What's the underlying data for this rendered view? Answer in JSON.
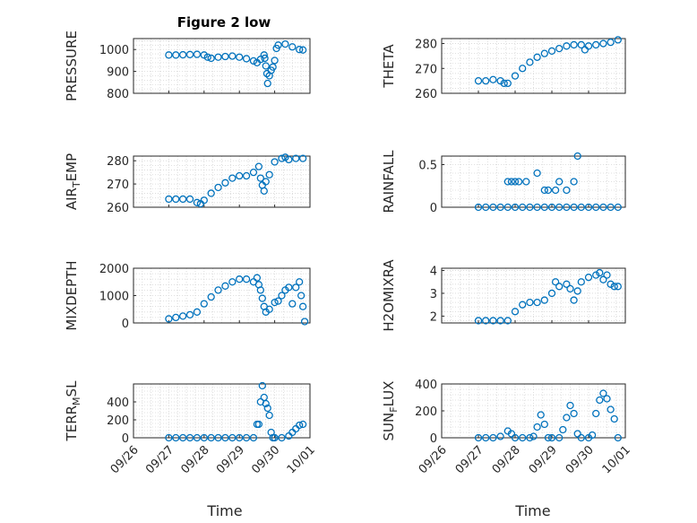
{
  "title": "Figure 2 low",
  "colors": {
    "marker": "#0072BD",
    "axis": "#262626",
    "grid": "#d6d6d6",
    "background": "#ffffff"
  },
  "x_ticks": [
    "09/26",
    "09/27",
    "09/28",
    "09/29",
    "09/30",
    "10/01"
  ],
  "x_label": "Time",
  "chart_data": [
    {
      "type": "scatter",
      "ylabel_main": "PRESSURE",
      "ylabel_sub": "",
      "ylabel_tail": "",
      "ylim": [
        800,
        1050
      ],
      "yticks": [
        800,
        900,
        1000
      ],
      "xlim": [
        0,
        5
      ],
      "grid": true,
      "series": [
        {
          "values": [
            [
              1.0,
              975
            ],
            [
              1.2,
              975
            ],
            [
              1.4,
              976
            ],
            [
              1.6,
              977
            ],
            [
              1.8,
              978
            ],
            [
              2.0,
              975
            ],
            [
              2.1,
              965
            ],
            [
              2.2,
              960
            ],
            [
              2.4,
              965
            ],
            [
              2.6,
              968
            ],
            [
              2.8,
              970
            ],
            [
              3.0,
              965
            ],
            [
              3.2,
              958
            ],
            [
              3.4,
              948
            ],
            [
              3.5,
              940
            ],
            [
              3.6,
              955
            ],
            [
              3.7,
              975
            ],
            [
              3.72,
              960
            ],
            [
              3.75,
              925
            ],
            [
              3.78,
              890
            ],
            [
              3.8,
              845
            ],
            [
              3.85,
              880
            ],
            [
              3.9,
              905
            ],
            [
              3.95,
              920
            ],
            [
              4.0,
              950
            ],
            [
              4.05,
              1005
            ],
            [
              4.1,
              1020
            ],
            [
              4.3,
              1025
            ],
            [
              4.5,
              1012
            ],
            [
              4.7,
              1000
            ],
            [
              4.8,
              998
            ]
          ]
        }
      ]
    },
    {
      "type": "scatter",
      "ylabel_main": "THETA",
      "ylabel_sub": "",
      "ylabel_tail": "",
      "ylim": [
        260,
        282
      ],
      "yticks": [
        260,
        270,
        280
      ],
      "xlim": [
        0,
        5
      ],
      "grid": true,
      "series": [
        {
          "values": [
            [
              1.0,
              265
            ],
            [
              1.2,
              265
            ],
            [
              1.4,
              265.5
            ],
            [
              1.6,
              265
            ],
            [
              1.7,
              264
            ],
            [
              1.8,
              264
            ],
            [
              2.0,
              267
            ],
            [
              2.2,
              270
            ],
            [
              2.4,
              272.5
            ],
            [
              2.6,
              274.5
            ],
            [
              2.8,
              276
            ],
            [
              3.0,
              277
            ],
            [
              3.2,
              278
            ],
            [
              3.4,
              279
            ],
            [
              3.6,
              279.5
            ],
            [
              3.8,
              279.5
            ],
            [
              3.9,
              277.5
            ],
            [
              4.0,
              279
            ],
            [
              4.2,
              279.5
            ],
            [
              4.4,
              280
            ],
            [
              4.6,
              280.5
            ],
            [
              4.8,
              281.5
            ]
          ]
        }
      ]
    },
    {
      "type": "scatter",
      "ylabel_main": "AIR",
      "ylabel_sub": "T",
      "ylabel_tail": "EMP",
      "ylim": [
        260,
        282
      ],
      "yticks": [
        260,
        270,
        280
      ],
      "xlim": [
        0,
        5
      ],
      "grid": true,
      "series": [
        {
          "values": [
            [
              1.0,
              263.5
            ],
            [
              1.2,
              263.5
            ],
            [
              1.4,
              263.5
            ],
            [
              1.6,
              263.5
            ],
            [
              1.8,
              262
            ],
            [
              1.9,
              261.5
            ],
            [
              2.0,
              263
            ],
            [
              2.2,
              266
            ],
            [
              2.4,
              268.5
            ],
            [
              2.6,
              270.5
            ],
            [
              2.8,
              272.5
            ],
            [
              3.0,
              273.5
            ],
            [
              3.2,
              273.5
            ],
            [
              3.4,
              275
            ],
            [
              3.55,
              277.5
            ],
            [
              3.6,
              272.5
            ],
            [
              3.65,
              269.5
            ],
            [
              3.7,
              267
            ],
            [
              3.75,
              271
            ],
            [
              3.85,
              274
            ],
            [
              4.0,
              279.5
            ],
            [
              4.2,
              281
            ],
            [
              4.3,
              281.5
            ],
            [
              4.4,
              280.5
            ],
            [
              4.6,
              281
            ],
            [
              4.8,
              281
            ]
          ]
        }
      ]
    },
    {
      "type": "scatter",
      "ylabel_main": "RAINFALL",
      "ylabel_sub": "",
      "ylabel_tail": "",
      "ylim": [
        0,
        0.6
      ],
      "yticks": [
        0,
        0.5
      ],
      "xlim": [
        0,
        5
      ],
      "grid": true,
      "series": [
        {
          "values": [
            [
              1.0,
              0
            ],
            [
              1.2,
              0
            ],
            [
              1.4,
              0
            ],
            [
              1.6,
              0
            ],
            [
              1.8,
              0
            ],
            [
              2.0,
              0
            ],
            [
              2.2,
              0
            ],
            [
              2.4,
              0
            ],
            [
              2.6,
              0
            ],
            [
              2.8,
              0
            ],
            [
              3.0,
              0
            ],
            [
              3.2,
              0
            ],
            [
              3.4,
              0
            ],
            [
              3.6,
              0
            ],
            [
              3.8,
              0
            ],
            [
              4.0,
              0
            ],
            [
              4.2,
              0
            ],
            [
              4.4,
              0
            ],
            [
              4.6,
              0
            ],
            [
              4.8,
              0
            ],
            [
              1.8,
              0.3
            ],
            [
              1.9,
              0.3
            ],
            [
              2.0,
              0.3
            ],
            [
              2.1,
              0.3
            ],
            [
              2.3,
              0.3
            ],
            [
              2.6,
              0.4
            ],
            [
              2.8,
              0.2
            ],
            [
              2.9,
              0.2
            ],
            [
              3.1,
              0.2
            ],
            [
              3.2,
              0.3
            ],
            [
              3.4,
              0.2
            ],
            [
              3.6,
              0.3
            ],
            [
              3.7,
              0.6
            ]
          ]
        }
      ]
    },
    {
      "type": "scatter",
      "ylabel_main": "MIXDEPTH",
      "ylabel_sub": "",
      "ylabel_tail": "",
      "ylim": [
        0,
        2000
      ],
      "yticks": [
        0,
        1000,
        2000
      ],
      "xlim": [
        0,
        5
      ],
      "grid": true,
      "series": [
        {
          "values": [
            [
              1.0,
              150
            ],
            [
              1.2,
              200
            ],
            [
              1.4,
              250
            ],
            [
              1.6,
              300
            ],
            [
              1.8,
              400
            ],
            [
              2.0,
              700
            ],
            [
              2.2,
              950
            ],
            [
              2.4,
              1200
            ],
            [
              2.6,
              1350
            ],
            [
              2.8,
              1500
            ],
            [
              3.0,
              1600
            ],
            [
              3.2,
              1600
            ],
            [
              3.4,
              1500
            ],
            [
              3.5,
              1650
            ],
            [
              3.55,
              1400
            ],
            [
              3.6,
              1200
            ],
            [
              3.65,
              900
            ],
            [
              3.7,
              600
            ],
            [
              3.75,
              400
            ],
            [
              3.85,
              500
            ],
            [
              4.0,
              750
            ],
            [
              4.1,
              800
            ],
            [
              4.2,
              1000
            ],
            [
              4.3,
              1200
            ],
            [
              4.4,
              1300
            ],
            [
              4.5,
              700
            ],
            [
              4.6,
              1300
            ],
            [
              4.7,
              1500
            ],
            [
              4.75,
              1000
            ],
            [
              4.8,
              600
            ],
            [
              4.85,
              50
            ]
          ]
        }
      ]
    },
    {
      "type": "scatter",
      "ylabel_main": "H2OMIXRA",
      "ylabel_sub": "",
      "ylabel_tail": "",
      "ylim": [
        1.7,
        4.1
      ],
      "yticks": [
        2,
        3,
        4
      ],
      "xlim": [
        0,
        5
      ],
      "grid": true,
      "series": [
        {
          "values": [
            [
              1.0,
              1.8
            ],
            [
              1.2,
              1.8
            ],
            [
              1.4,
              1.8
            ],
            [
              1.6,
              1.8
            ],
            [
              1.8,
              1.8
            ],
            [
              2.0,
              2.2
            ],
            [
              2.2,
              2.5
            ],
            [
              2.4,
              2.6
            ],
            [
              2.6,
              2.6
            ],
            [
              2.8,
              2.7
            ],
            [
              3.0,
              3.0
            ],
            [
              3.1,
              3.5
            ],
            [
              3.2,
              3.3
            ],
            [
              3.4,
              3.4
            ],
            [
              3.5,
              3.2
            ],
            [
              3.6,
              2.7
            ],
            [
              3.7,
              3.1
            ],
            [
              3.8,
              3.5
            ],
            [
              4.0,
              3.7
            ],
            [
              4.2,
              3.8
            ],
            [
              4.3,
              3.9
            ],
            [
              4.4,
              3.6
            ],
            [
              4.5,
              3.8
            ],
            [
              4.6,
              3.4
            ],
            [
              4.7,
              3.3
            ],
            [
              4.8,
              3.3
            ]
          ]
        }
      ]
    },
    {
      "type": "scatter",
      "ylabel_main": "TERR",
      "ylabel_sub": "M",
      "ylabel_tail": "SL",
      "ylim": [
        0,
        600
      ],
      "yticks": [
        0,
        200,
        400
      ],
      "xlim": [
        0,
        5
      ],
      "grid": true,
      "series": [
        {
          "values": [
            [
              1.0,
              0
            ],
            [
              1.2,
              0
            ],
            [
              1.4,
              0
            ],
            [
              1.6,
              0
            ],
            [
              1.8,
              0
            ],
            [
              2.0,
              0
            ],
            [
              2.2,
              0
            ],
            [
              2.4,
              0
            ],
            [
              2.6,
              0
            ],
            [
              2.8,
              0
            ],
            [
              3.0,
              0
            ],
            [
              3.2,
              0
            ],
            [
              3.4,
              0
            ],
            [
              3.5,
              150
            ],
            [
              3.55,
              150
            ],
            [
              3.6,
              400
            ],
            [
              3.65,
              580
            ],
            [
              3.7,
              450
            ],
            [
              3.75,
              380
            ],
            [
              3.8,
              330
            ],
            [
              3.85,
              250
            ],
            [
              3.9,
              60
            ],
            [
              3.95,
              0
            ],
            [
              4.0,
              0
            ],
            [
              4.2,
              0
            ],
            [
              4.4,
              20
            ],
            [
              4.5,
              60
            ],
            [
              4.6,
              100
            ],
            [
              4.7,
              140
            ],
            [
              4.8,
              150
            ]
          ]
        }
      ]
    },
    {
      "type": "scatter",
      "ylabel_main": "SUN",
      "ylabel_sub": "F",
      "ylabel_tail": "LUX",
      "ylim": [
        0,
        400
      ],
      "yticks": [
        0,
        200,
        400
      ],
      "xlim": [
        0,
        5
      ],
      "grid": true,
      "series": [
        {
          "values": [
            [
              1.0,
              0
            ],
            [
              1.2,
              0
            ],
            [
              1.4,
              0
            ],
            [
              1.6,
              10
            ],
            [
              1.8,
              50
            ],
            [
              1.9,
              30
            ],
            [
              2.0,
              0
            ],
            [
              2.2,
              0
            ],
            [
              2.4,
              0
            ],
            [
              2.5,
              10
            ],
            [
              2.6,
              80
            ],
            [
              2.7,
              170
            ],
            [
              2.8,
              100
            ],
            [
              2.9,
              0
            ],
            [
              3.0,
              0
            ],
            [
              3.2,
              0
            ],
            [
              3.3,
              60
            ],
            [
              3.4,
              150
            ],
            [
              3.5,
              240
            ],
            [
              3.6,
              180
            ],
            [
              3.7,
              30
            ],
            [
              3.8,
              0
            ],
            [
              4.0,
              0
            ],
            [
              4.1,
              20
            ],
            [
              4.2,
              180
            ],
            [
              4.3,
              280
            ],
            [
              4.4,
              330
            ],
            [
              4.5,
              290
            ],
            [
              4.6,
              210
            ],
            [
              4.7,
              140
            ],
            [
              4.8,
              0
            ]
          ]
        }
      ]
    }
  ]
}
